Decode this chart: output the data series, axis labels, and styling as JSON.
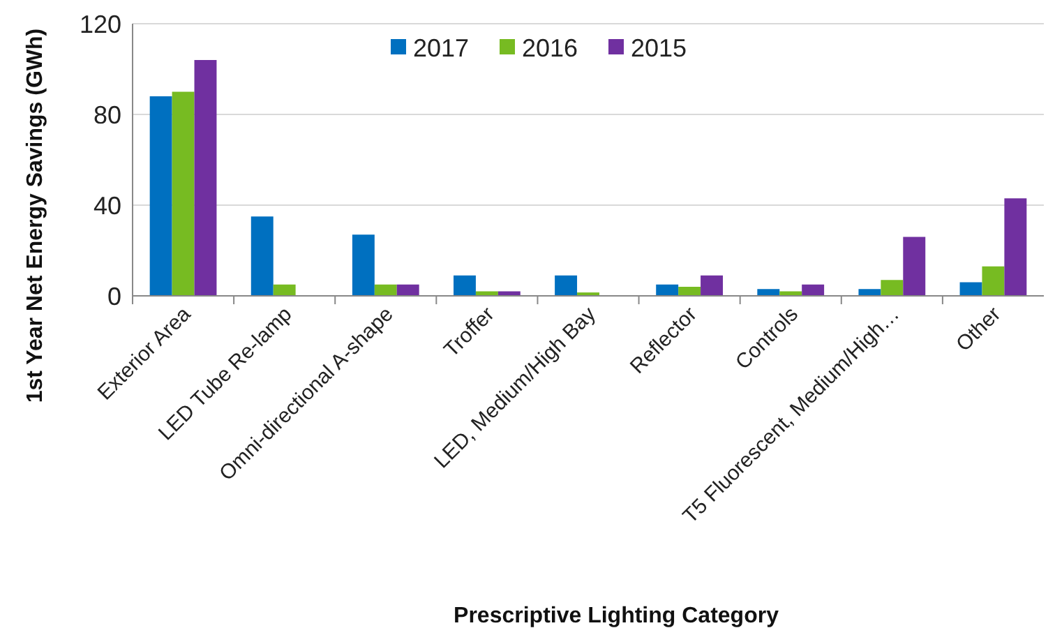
{
  "chart_data": {
    "type": "bar",
    "xlabel": "Prescriptive Lighting Category",
    "ylabel": "1st Year Net Energy Savings (GWh)",
    "categories": [
      "Exterior Area",
      "LED Tube Re-lamp",
      "Omni-directional A-shape",
      "Troffer",
      "LED, Medium/High Bay",
      "Reflector",
      "Controls",
      "T5 Fluorescent, Medium/High…",
      "Other"
    ],
    "series": [
      {
        "name": "2017",
        "color": "#0070c0",
        "values": [
          88,
          35,
          27,
          9,
          9,
          5,
          3,
          3,
          6
        ]
      },
      {
        "name": "2016",
        "color": "#77bb22",
        "values": [
          90,
          5,
          5,
          2,
          1.5,
          4,
          2,
          7,
          13
        ]
      },
      {
        "name": "2015",
        "color": "#7030a0",
        "values": [
          104,
          null,
          5,
          2,
          null,
          9,
          5,
          26,
          43
        ]
      }
    ],
    "ylim": [
      0,
      120
    ],
    "yticks": [
      0,
      40,
      80,
      120
    ],
    "grid": "y",
    "legend": "top"
  }
}
